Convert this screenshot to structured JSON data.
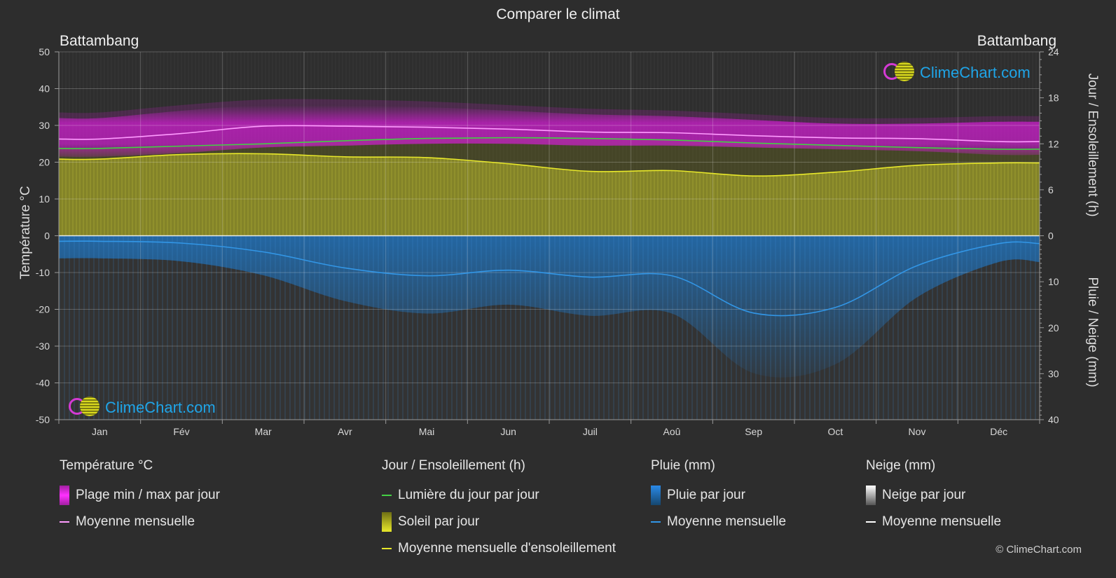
{
  "title": "Comparer le climat",
  "location_left": "Battambang",
  "location_right": "Battambang",
  "axis_left_title": "Température °C",
  "axis_right_top_title": "Jour / Ensoleillement (h)",
  "axis_right_bottom_title": "Pluie / Neige (mm)",
  "logo_text": "ClimeChart.com",
  "copyright": "© ClimeChart.com",
  "colors": {
    "background": "#2d2d2d",
    "temp_range": "#d21ed2",
    "temp_mean": "#ff9bff",
    "daylight": "#44d044",
    "sunshine": "#aaaa2a",
    "sunshine_mean": "#e8e82a",
    "rain": "#1e78c8",
    "rain_mean": "#3296e6",
    "snow": "#ffffff"
  },
  "legend": {
    "temperature": {
      "title": "Température °C",
      "range": "Plage min / max par jour",
      "mean": "Moyenne mensuelle"
    },
    "sun": {
      "title": "Jour / Ensoleillement (h)",
      "daylight": "Lumière du jour par jour",
      "sunshine": "Soleil par jour",
      "sunshine_mean": "Moyenne mensuelle d'ensoleillement"
    },
    "rain": {
      "title": "Pluie (mm)",
      "daily": "Pluie par jour",
      "mean": "Moyenne mensuelle"
    },
    "snow": {
      "title": "Neige (mm)",
      "daily": "Neige par jour",
      "mean": "Moyenne mensuelle"
    }
  },
  "chart_data": {
    "type": "area",
    "categories": [
      "Jan",
      "Fév",
      "Mar",
      "Avr",
      "Mai",
      "Jun",
      "Juil",
      "Aoû",
      "Sep",
      "Oct",
      "Nov",
      "Déc"
    ],
    "y_left_ticks": [
      50,
      40,
      30,
      20,
      10,
      0,
      -10,
      -20,
      -30,
      -40,
      -50
    ],
    "y_left_range": [
      -50,
      50
    ],
    "y_right_sun_ticks": [
      24,
      18,
      12,
      6,
      0
    ],
    "y_right_sun_range": [
      0,
      24
    ],
    "y_right_rain_ticks": [
      0,
      10,
      20,
      30,
      40
    ],
    "y_right_rain_range": [
      0,
      40
    ],
    "grid": true,
    "series": [
      {
        "name": "Moyenne mensuelle",
        "key": "temp_mean",
        "axis": "temp_c",
        "values": [
          26.3,
          27.8,
          29.8,
          29.8,
          29.5,
          29.0,
          28.2,
          28.0,
          27.2,
          26.6,
          26.4,
          25.6
        ]
      },
      {
        "name": "Plage min / max par jour",
        "key": "temp_max",
        "axis": "temp_c",
        "values": [
          32.0,
          34.0,
          35.5,
          35.5,
          35.0,
          34.0,
          33.0,
          32.5,
          31.5,
          30.5,
          30.5,
          31.0
        ]
      },
      {
        "name": "Plage min / max par jour",
        "key": "temp_min",
        "axis": "temp_c",
        "values": [
          21.5,
          22.5,
          24.0,
          24.5,
          25.0,
          25.0,
          24.5,
          24.5,
          24.0,
          23.5,
          23.0,
          22.0
        ]
      },
      {
        "name": "Lumière du jour par jour",
        "key": "daylight",
        "axis": "hours",
        "values": [
          11.4,
          11.7,
          12.0,
          12.4,
          12.7,
          12.8,
          12.7,
          12.5,
          12.1,
          11.8,
          11.5,
          11.3
        ]
      },
      {
        "name": "Soleil par jour",
        "key": "sunshine",
        "axis": "hours",
        "values": [
          10.0,
          10.6,
          10.7,
          10.3,
          10.2,
          9.4,
          8.4,
          8.5,
          7.8,
          8.3,
          9.2,
          9.5
        ]
      },
      {
        "name": "Moyenne mensuelle",
        "key": "rain_mean",
        "axis": "rain_mm",
        "values": [
          1.2,
          1.6,
          3.5,
          7.0,
          8.7,
          7.5,
          9.0,
          8.7,
          16.8,
          15.6,
          6.5,
          1.7
        ]
      }
    ]
  }
}
